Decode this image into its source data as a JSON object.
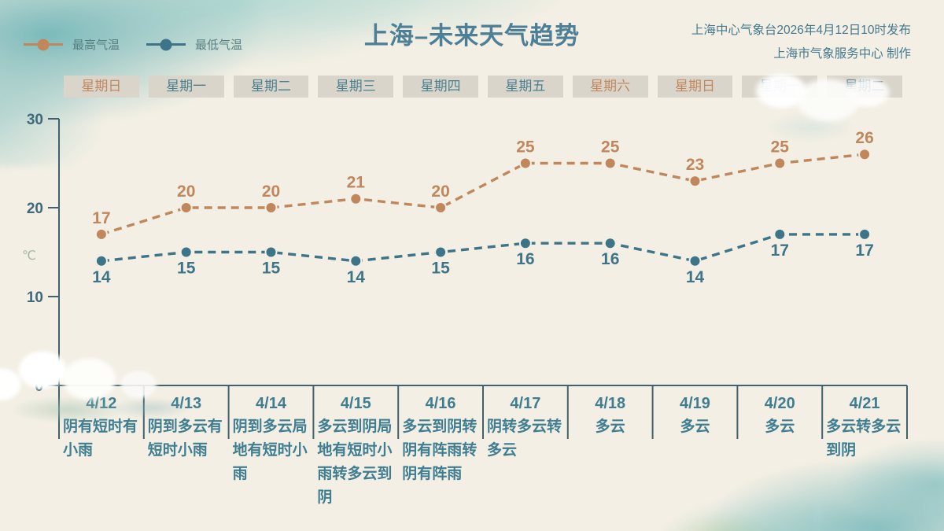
{
  "theme": {
    "bg": "#f3efe4",
    "chip_bg": "#d9d5cb",
    "chip_text": "#4b7f8e",
    "weekend_text": "#c1875f",
    "title_color": "#4d7f96",
    "publisher_color": "#45798d",
    "legend_text": "#587f82",
    "line_color": "#42616d",
    "axis_text": "#40697c",
    "table_text": "#3f7d91",
    "unit_color": "#a9b4af"
  },
  "header": {
    "title": "上海–未来天气趋势",
    "issued_line": "上海中心气象台2026年4月12日10时发布",
    "producer_line": "上海市气象服务中心 制作"
  },
  "chart_data": {
    "type": "line",
    "title": "上海–未来天气趋势",
    "x": [
      "4/12",
      "4/13",
      "4/14",
      "4/15",
      "4/16",
      "4/17",
      "4/18",
      "4/19",
      "4/20",
      "4/21"
    ],
    "weekdays": [
      "星期日",
      "星期一",
      "星期二",
      "星期三",
      "星期四",
      "星期五",
      "星期六",
      "星期日",
      "星期一",
      "星期二"
    ],
    "series": [
      {
        "name": "最高气温",
        "color": "#c0875d",
        "label_position": "above",
        "values": [
          17,
          20,
          20,
          21,
          20,
          25,
          25,
          23,
          25,
          26
        ]
      },
      {
        "name": "最低气温",
        "color": "#3d7488",
        "label_position": "below",
        "values": [
          14,
          15,
          15,
          14,
          15,
          16,
          16,
          14,
          17,
          17
        ]
      }
    ],
    "ylabel": "℃",
    "yticks": [
      0,
      10,
      20,
      30
    ],
    "ylim": [
      0,
      30
    ],
    "grid": false,
    "line_style": "dashed",
    "legend_position": "top-left"
  },
  "forecast": {
    "days": [
      {
        "weekday": "星期日",
        "weekend": true,
        "date": "4/12",
        "weather": "阴有短时有小雨"
      },
      {
        "weekday": "星期一",
        "weekend": false,
        "date": "4/13",
        "weather": "阴到多云有短时小雨"
      },
      {
        "weekday": "星期二",
        "weekend": false,
        "date": "4/14",
        "weather": "阴到多云局地有短时小雨"
      },
      {
        "weekday": "星期三",
        "weekend": false,
        "date": "4/15",
        "weather": "多云到阴局地有短时小雨转多云到阴"
      },
      {
        "weekday": "星期四",
        "weekend": false,
        "date": "4/16",
        "weather": "多云到阴转阴有阵雨转阴有阵雨"
      },
      {
        "weekday": "星期五",
        "weekend": false,
        "date": "4/17",
        "weather": "阴转多云转多云"
      },
      {
        "weekday": "星期六",
        "weekend": true,
        "date": "4/18",
        "weather": "多云"
      },
      {
        "weekday": "星期日",
        "weekend": true,
        "date": "4/19",
        "weather": "多云"
      },
      {
        "weekday": "星期一",
        "weekend": false,
        "date": "4/20",
        "weather": "多云"
      },
      {
        "weekday": "星期二",
        "weekend": false,
        "date": "4/21",
        "weather": "多云转多云到阴"
      }
    ]
  }
}
